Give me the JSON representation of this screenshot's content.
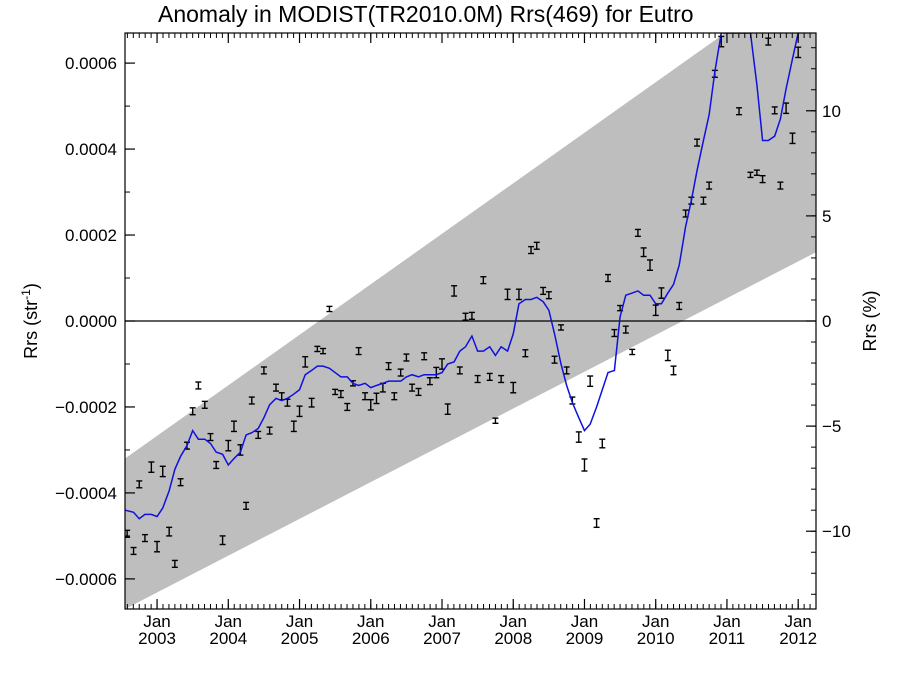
{
  "chart_data": {
    "type": "scatter",
    "title": "Anomaly in MODIST(TR2010.0M) Rrs(469) for Eutro",
    "ylabel": "Rrs (str",
    "ylabel_sup": "-1",
    "ylabel_end": ")",
    "y2label": "Rrs (%)",
    "xlim": [
      2002.55,
      2012.25
    ],
    "ylim": [
      -0.00067,
      0.00067
    ],
    "y2lim": [
      -13.7,
      13.7
    ],
    "y_ticks": [
      {
        "value": -0.0006,
        "label": "−0.0006"
      },
      {
        "value": -0.0004,
        "label": "−0.0004"
      },
      {
        "value": -0.0002,
        "label": "−0.0002"
      },
      {
        "value": 0.0,
        "label": "0.0000"
      },
      {
        "value": 0.0002,
        "label": "0.0002"
      },
      {
        "value": 0.0004,
        "label": "0.0004"
      },
      {
        "value": 0.0006,
        "label": "0.0006"
      }
    ],
    "y2_ticks": [
      {
        "value": -10,
        "label": "−10"
      },
      {
        "value": -5,
        "label": "−5"
      },
      {
        "value": 0,
        "label": "0"
      },
      {
        "value": 5,
        "label": "5"
      },
      {
        "value": 10,
        "label": "10"
      }
    ],
    "x_ticks": [
      {
        "value": 2003,
        "month": "Jan",
        "year": "2003"
      },
      {
        "value": 2004,
        "month": "Jan",
        "year": "2004"
      },
      {
        "value": 2005,
        "month": "Jan",
        "year": "2005"
      },
      {
        "value": 2006,
        "month": "Jan",
        "year": "2006"
      },
      {
        "value": 2007,
        "month": "Jan",
        "year": "2007"
      },
      {
        "value": 2008,
        "month": "Jan",
        "year": "2008"
      },
      {
        "value": 2009,
        "month": "Jan",
        "year": "2009"
      },
      {
        "value": 2010,
        "month": "Jan",
        "year": "2010"
      },
      {
        "value": 2011,
        "month": "Jan",
        "year": "2011"
      },
      {
        "value": 2012,
        "month": "Jan",
        "year": "2012"
      }
    ],
    "band": {
      "upper_start": [
        2002.55,
        -0.00032
      ],
      "upper_end": [
        2012.25,
        0.00082
      ],
      "lower_start": [
        2002.55,
        -0.00067
      ],
      "lower_end": [
        2012.25,
        0.00016
      ]
    },
    "zero_line": 0.0,
    "points": [
      {
        "x": 2002.58,
        "y": -0.000495,
        "e": 8e-06
      },
      {
        "x": 2002.67,
        "y": -0.000535,
        "e": 8e-06
      },
      {
        "x": 2002.75,
        "y": -0.00038,
        "e": 8e-06
      },
      {
        "x": 2002.83,
        "y": -0.000505,
        "e": 8e-06
      },
      {
        "x": 2002.92,
        "y": -0.00034,
        "e": 1.2e-05
      },
      {
        "x": 2003.0,
        "y": -0.000525,
        "e": 1.2e-05
      },
      {
        "x": 2003.08,
        "y": -0.00035,
        "e": 1.2e-05
      },
      {
        "x": 2003.17,
        "y": -0.00049,
        "e": 1e-05
      },
      {
        "x": 2003.25,
        "y": -0.000565,
        "e": 8e-06
      },
      {
        "x": 2003.33,
        "y": -0.000375,
        "e": 8e-06
      },
      {
        "x": 2003.42,
        "y": -0.00029,
        "e": 8e-06
      },
      {
        "x": 2003.5,
        "y": -0.00021,
        "e": 8e-06
      },
      {
        "x": 2003.58,
        "y": -0.00015,
        "e": 8e-06
      },
      {
        "x": 2003.67,
        "y": -0.000195,
        "e": 8e-06
      },
      {
        "x": 2003.75,
        "y": -0.00027,
        "e": 8e-06
      },
      {
        "x": 2003.83,
        "y": -0.000335,
        "e": 8e-06
      },
      {
        "x": 2003.92,
        "y": -0.00051,
        "e": 1e-05
      },
      {
        "x": 2004.0,
        "y": -0.00029,
        "e": 1.2e-05
      },
      {
        "x": 2004.08,
        "y": -0.000245,
        "e": 1.2e-05
      },
      {
        "x": 2004.17,
        "y": -0.0003,
        "e": 1.2e-05
      },
      {
        "x": 2004.25,
        "y": -0.00043,
        "e": 8e-06
      },
      {
        "x": 2004.33,
        "y": -0.000185,
        "e": 8e-06
      },
      {
        "x": 2004.42,
        "y": -0.000265,
        "e": 8e-06
      },
      {
        "x": 2004.5,
        "y": -0.000115,
        "e": 8e-06
      },
      {
        "x": 2004.58,
        "y": -0.000255,
        "e": 8e-06
      },
      {
        "x": 2004.67,
        "y": -0.000155,
        "e": 8e-06
      },
      {
        "x": 2004.75,
        "y": -0.000175,
        "e": 8e-06
      },
      {
        "x": 2004.83,
        "y": -0.00019,
        "e": 8e-06
      },
      {
        "x": 2004.92,
        "y": -0.000245,
        "e": 1.2e-05
      },
      {
        "x": 2005.0,
        "y": -0.00021,
        "e": 1.2e-05
      },
      {
        "x": 2005.08,
        "y": -9.5e-05,
        "e": 1.2e-05
      },
      {
        "x": 2005.17,
        "y": -0.00019,
        "e": 1e-05
      },
      {
        "x": 2005.25,
        "y": -6.5e-05,
        "e": 6e-06
      },
      {
        "x": 2005.33,
        "y": -7e-05,
        "e": 6e-06
      },
      {
        "x": 2005.42,
        "y": 2.8e-05,
        "e": 6e-06
      },
      {
        "x": 2005.5,
        "y": -0.000165,
        "e": 6e-06
      },
      {
        "x": 2005.58,
        "y": -0.00017,
        "e": 8e-06
      },
      {
        "x": 2005.67,
        "y": -0.0002,
        "e": 8e-06
      },
      {
        "x": 2005.75,
        "y": -0.000145,
        "e": 6e-06
      },
      {
        "x": 2005.83,
        "y": -7e-05,
        "e": 8e-06
      },
      {
        "x": 2005.92,
        "y": -0.000175,
        "e": 8e-06
      },
      {
        "x": 2006.0,
        "y": -0.000195,
        "e": 1.2e-05
      },
      {
        "x": 2006.08,
        "y": -0.00018,
        "e": 1.2e-05
      },
      {
        "x": 2006.17,
        "y": -0.000155,
        "e": 1e-05
      },
      {
        "x": 2006.25,
        "y": -0.000105,
        "e": 8e-06
      },
      {
        "x": 2006.33,
        "y": -0.000175,
        "e": 8e-06
      },
      {
        "x": 2006.42,
        "y": -0.00012,
        "e": 8e-06
      },
      {
        "x": 2006.5,
        "y": -8.5e-05,
        "e": 8e-06
      },
      {
        "x": 2006.58,
        "y": -0.000155,
        "e": 8e-06
      },
      {
        "x": 2006.67,
        "y": -0.000165,
        "e": 8e-06
      },
      {
        "x": 2006.75,
        "y": -8.2e-05,
        "e": 8e-06
      },
      {
        "x": 2006.83,
        "y": -0.00014,
        "e": 8e-06
      },
      {
        "x": 2006.92,
        "y": -0.00012,
        "e": 1.2e-05
      },
      {
        "x": 2007.0,
        "y": -0.0001,
        "e": 1.2e-05
      },
      {
        "x": 2007.08,
        "y": -0.000205,
        "e": 1.2e-05
      },
      {
        "x": 2007.17,
        "y": 7e-05,
        "e": 1.2e-05
      },
      {
        "x": 2007.25,
        "y": -0.000115,
        "e": 8e-06
      },
      {
        "x": 2007.33,
        "y": 1e-05,
        "e": 8e-06
      },
      {
        "x": 2007.42,
        "y": 1.2e-05,
        "e": 8e-06
      },
      {
        "x": 2007.5,
        "y": -0.000135,
        "e": 8e-06
      },
      {
        "x": 2007.58,
        "y": 9.5e-05,
        "e": 8e-06
      },
      {
        "x": 2007.67,
        "y": -0.00013,
        "e": 8e-06
      },
      {
        "x": 2007.75,
        "y": -0.000232,
        "e": 6e-06
      },
      {
        "x": 2007.83,
        "y": -0.000135,
        "e": 8e-06
      },
      {
        "x": 2007.92,
        "y": 6.2e-05,
        "e": 1.2e-05
      },
      {
        "x": 2008.0,
        "y": -0.000155,
        "e": 1.2e-05
      },
      {
        "x": 2008.08,
        "y": 6.2e-05,
        "e": 1.2e-05
      },
      {
        "x": 2008.17,
        "y": -7.5e-05,
        "e": 8e-06
      },
      {
        "x": 2008.25,
        "y": 0.000165,
        "e": 8e-06
      },
      {
        "x": 2008.33,
        "y": 0.000175,
        "e": 8e-06
      },
      {
        "x": 2008.42,
        "y": 7e-05,
        "e": 8e-06
      },
      {
        "x": 2008.5,
        "y": 6e-05,
        "e": 8e-06
      },
      {
        "x": 2008.58,
        "y": -9e-05,
        "e": 8e-06
      },
      {
        "x": 2008.67,
        "y": -1.5e-05,
        "e": 6e-06
      },
      {
        "x": 2008.75,
        "y": -0.000115,
        "e": 8e-06
      },
      {
        "x": 2008.83,
        "y": -0.000185,
        "e": 8e-06
      },
      {
        "x": 2008.92,
        "y": -0.00027,
        "e": 1.2e-05
      },
      {
        "x": 2009.0,
        "y": -0.000335,
        "e": 1.4e-05
      },
      {
        "x": 2009.08,
        "y": -0.00014,
        "e": 1.2e-05
      },
      {
        "x": 2009.17,
        "y": -0.00047,
        "e": 1e-05
      },
      {
        "x": 2009.25,
        "y": -0.000285,
        "e": 1e-05
      },
      {
        "x": 2009.33,
        "y": 0.0001,
        "e": 8e-06
      },
      {
        "x": 2009.42,
        "y": -2.8e-05,
        "e": 8e-06
      },
      {
        "x": 2009.5,
        "y": 3e-05,
        "e": 6e-06
      },
      {
        "x": 2009.58,
        "y": -2e-05,
        "e": 8e-06
      },
      {
        "x": 2009.67,
        "y": -7.2e-05,
        "e": 6e-06
      },
      {
        "x": 2009.75,
        "y": 0.000205,
        "e": 8e-06
      },
      {
        "x": 2009.83,
        "y": 0.00016,
        "e": 1e-05
      },
      {
        "x": 2009.92,
        "y": 0.00013,
        "e": 1.2e-05
      },
      {
        "x": 2010.0,
        "y": 2.5e-05,
        "e": 1.2e-05
      },
      {
        "x": 2010.08,
        "y": 6.5e-05,
        "e": 1.2e-05
      },
      {
        "x": 2010.17,
        "y": -8e-05,
        "e": 1.2e-05
      },
      {
        "x": 2010.25,
        "y": -0.000115,
        "e": 1e-05
      },
      {
        "x": 2010.33,
        "y": 3.5e-05,
        "e": 8e-06
      },
      {
        "x": 2010.42,
        "y": 0.00025,
        "e": 8e-06
      },
      {
        "x": 2010.5,
        "y": 0.00028,
        "e": 8e-06
      },
      {
        "x": 2010.58,
        "y": 0.000415,
        "e": 8e-06
      },
      {
        "x": 2010.67,
        "y": 0.00028,
        "e": 8e-06
      },
      {
        "x": 2010.75,
        "y": 0.000315,
        "e": 8e-06
      },
      {
        "x": 2010.83,
        "y": 0.000575,
        "e": 8e-06
      },
      {
        "x": 2010.92,
        "y": 0.00065,
        "e": 1.2e-05
      },
      {
        "x": 2011.17,
        "y": 0.000488,
        "e": 8e-06
      },
      {
        "x": 2011.33,
        "y": 0.00034,
        "e": 6e-06
      },
      {
        "x": 2011.42,
        "y": 0.000345,
        "e": 6e-06
      },
      {
        "x": 2011.5,
        "y": 0.00033,
        "e": 8e-06
      },
      {
        "x": 2011.58,
        "y": 0.00065,
        "e": 8e-06
      },
      {
        "x": 2011.67,
        "y": 0.00049,
        "e": 8e-06
      },
      {
        "x": 2011.75,
        "y": 0.000315,
        "e": 8e-06
      },
      {
        "x": 2011.83,
        "y": 0.000495,
        "e": 1.2e-05
      },
      {
        "x": 2011.92,
        "y": 0.000425,
        "e": 1.2e-05
      },
      {
        "x": 2012.0,
        "y": 0.000625,
        "e": 1.2e-05
      }
    ],
    "line": [
      [
        2002.55,
        -0.00044
      ],
      [
        2002.67,
        -0.000445
      ],
      [
        2002.75,
        -0.00046
      ],
      [
        2002.83,
        -0.00045
      ],
      [
        2002.92,
        -0.00045
      ],
      [
        2003.0,
        -0.000455
      ],
      [
        2003.08,
        -0.000435
      ],
      [
        2003.17,
        -0.000395
      ],
      [
        2003.25,
        -0.000345
      ],
      [
        2003.33,
        -0.000315
      ],
      [
        2003.42,
        -0.00029
      ],
      [
        2003.5,
        -0.000255
      ],
      [
        2003.58,
        -0.000275
      ],
      [
        2003.67,
        -0.000275
      ],
      [
        2003.75,
        -0.000285
      ],
      [
        2003.83,
        -0.000305
      ],
      [
        2003.92,
        -0.00031
      ],
      [
        2004.0,
        -0.000335
      ],
      [
        2004.08,
        -0.00032
      ],
      [
        2004.17,
        -0.000305
      ],
      [
        2004.25,
        -0.000265
      ],
      [
        2004.33,
        -0.00026
      ],
      [
        2004.42,
        -0.00025
      ],
      [
        2004.5,
        -0.000225
      ],
      [
        2004.58,
        -0.000195
      ],
      [
        2004.67,
        -0.00018
      ],
      [
        2004.75,
        -0.000185
      ],
      [
        2004.83,
        -0.00018
      ],
      [
        2004.92,
        -0.00017
      ],
      [
        2005.0,
        -0.00016
      ],
      [
        2005.08,
        -0.000125
      ],
      [
        2005.17,
        -0.000115
      ],
      [
        2005.25,
        -0.000105
      ],
      [
        2005.33,
        -0.000105
      ],
      [
        2005.42,
        -0.00011
      ],
      [
        2005.5,
        -0.00012
      ],
      [
        2005.58,
        -0.00013
      ],
      [
        2005.67,
        -0.00013
      ],
      [
        2005.75,
        -0.000145
      ],
      [
        2005.83,
        -0.00015
      ],
      [
        2005.92,
        -0.000145
      ],
      [
        2006.0,
        -0.000155
      ],
      [
        2006.08,
        -0.00015
      ],
      [
        2006.17,
        -0.000145
      ],
      [
        2006.25,
        -0.00014
      ],
      [
        2006.33,
        -0.00014
      ],
      [
        2006.42,
        -0.00014
      ],
      [
        2006.5,
        -0.00013
      ],
      [
        2006.58,
        -0.000125
      ],
      [
        2006.67,
        -0.00013
      ],
      [
        2006.75,
        -0.000125
      ],
      [
        2006.83,
        -0.000125
      ],
      [
        2006.92,
        -0.000125
      ],
      [
        2007.0,
        -0.00012
      ],
      [
        2007.08,
        -0.0001
      ],
      [
        2007.17,
        -9.5e-05
      ],
      [
        2007.25,
        -7e-05
      ],
      [
        2007.33,
        -6e-05
      ],
      [
        2007.42,
        -3.5e-05
      ],
      [
        2007.5,
        -7e-05
      ],
      [
        2007.58,
        -7e-05
      ],
      [
        2007.67,
        -6e-05
      ],
      [
        2007.75,
        -8e-05
      ],
      [
        2007.83,
        -6e-05
      ],
      [
        2007.92,
        -7e-05
      ],
      [
        2008.0,
        -3e-05
      ],
      [
        2008.08,
        4e-05
      ],
      [
        2008.17,
        5e-05
      ],
      [
        2008.25,
        5e-05
      ],
      [
        2008.33,
        5.5e-05
      ],
      [
        2008.42,
        4.5e-05
      ],
      [
        2008.5,
        2.5e-05
      ],
      [
        2008.58,
        -3e-05
      ],
      [
        2008.67,
        -0.0001
      ],
      [
        2008.75,
        -0.00015
      ],
      [
        2008.83,
        -0.00019
      ],
      [
        2008.92,
        -0.000225
      ],
      [
        2009.0,
        -0.000255
      ],
      [
        2009.08,
        -0.00024
      ],
      [
        2009.17,
        -0.0002
      ],
      [
        2009.25,
        -0.00016
      ],
      [
        2009.33,
        -0.00012
      ],
      [
        2009.42,
        -0.000115
      ],
      [
        2009.5,
        1e-05
      ],
      [
        2009.58,
        6e-05
      ],
      [
        2009.67,
        6.5e-05
      ],
      [
        2009.75,
        7e-05
      ],
      [
        2009.83,
        6e-05
      ],
      [
        2009.92,
        6e-05
      ],
      [
        2010.0,
        4e-05
      ],
      [
        2010.08,
        4e-05
      ],
      [
        2010.17,
        6.5e-05
      ],
      [
        2010.25,
        8.5e-05
      ],
      [
        2010.33,
        0.00013
      ],
      [
        2010.42,
        0.00022
      ],
      [
        2010.5,
        0.00028
      ],
      [
        2010.58,
        0.00035
      ],
      [
        2010.67,
        0.00042
      ],
      [
        2010.75,
        0.00048
      ],
      [
        2010.83,
        0.00058
      ],
      [
        2010.92,
        0.00067
      ],
      [
        2011.33,
        0.00067
      ],
      [
        2011.42,
        0.00055
      ],
      [
        2011.5,
        0.00042
      ],
      [
        2011.58,
        0.00042
      ],
      [
        2011.67,
        0.00043
      ],
      [
        2011.75,
        0.00047
      ],
      [
        2011.83,
        0.00054
      ],
      [
        2011.92,
        0.00061
      ],
      [
        2012.0,
        0.00067
      ]
    ],
    "colors": {
      "band": "#bebebe",
      "line": "#1010e0",
      "points": "#000000",
      "axis": "#000000"
    }
  }
}
